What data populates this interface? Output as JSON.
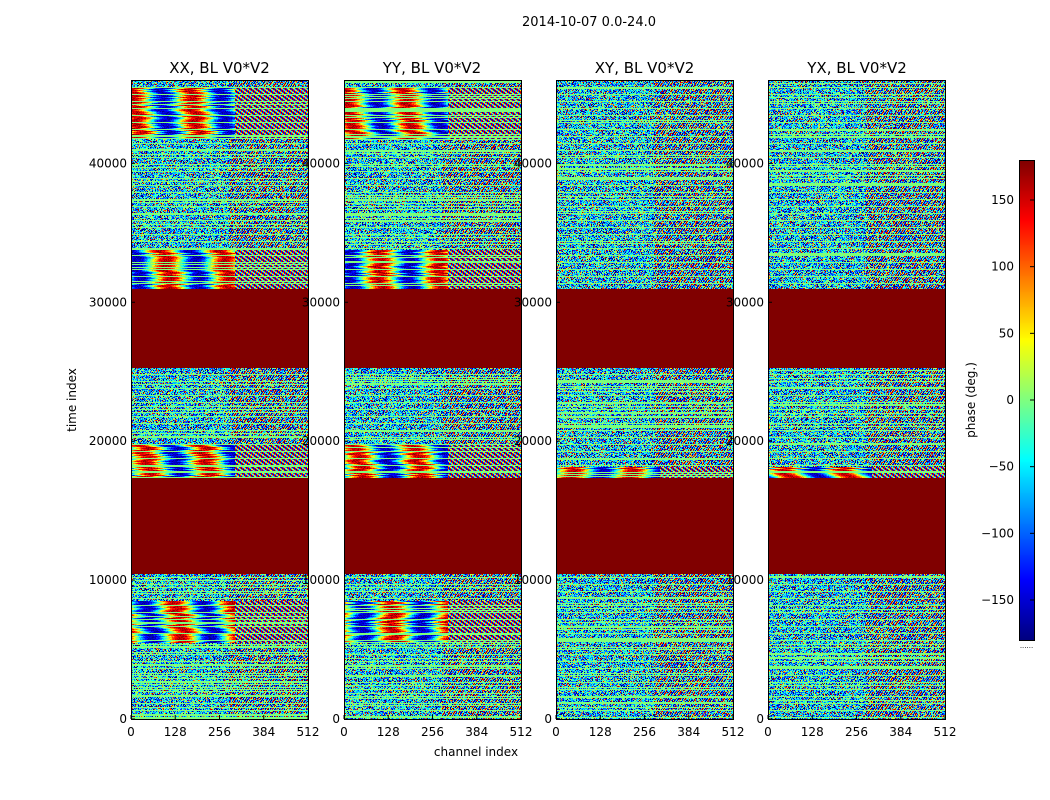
{
  "chart_data": {
    "type": "heatmap",
    "suptitle": "2014-10-07 0.0-24.0",
    "xlabel": "channel index",
    "ylabel": "time index",
    "x_range": [
      0,
      512
    ],
    "y_range": [
      0,
      46000
    ],
    "x_ticks": [
      0,
      128,
      256,
      384,
      512
    ],
    "y_ticks": [
      0,
      10000,
      20000,
      30000,
      40000
    ],
    "panels": [
      {
        "title": "XX, BL V0*V2",
        "cross": false
      },
      {
        "title": "YY, BL V0*V2",
        "cross": false
      },
      {
        "title": "XY, BL V0*V2",
        "cross": true
      },
      {
        "title": "YX, BL V0*V2",
        "cross": true
      }
    ],
    "flagged_time_ranges": [
      [
        10500,
        17400
      ],
      [
        25300,
        31000
      ]
    ],
    "coherent_bands": {
      "parallel": [
        [
          17400,
          19800
        ],
        [
          31000,
          33800
        ],
        [
          41800,
          45500
        ],
        [
          5500,
          8500
        ]
      ],
      "cross": [
        [
          17400,
          18200
        ]
      ]
    },
    "colorbar": {
      "label": "phase (deg.)",
      "range": [
        -180,
        180
      ],
      "ticks": [
        -150,
        -100,
        -50,
        0,
        50,
        100,
        150
      ],
      "tick_labels": [
        "−150",
        "−100",
        "−50",
        "0",
        "50",
        "100",
        "150"
      ],
      "colormap": "jet",
      "under_label": "......"
    },
    "colors": {
      "flagged": "#800000",
      "blank_row": "#7dff7a"
    }
  }
}
